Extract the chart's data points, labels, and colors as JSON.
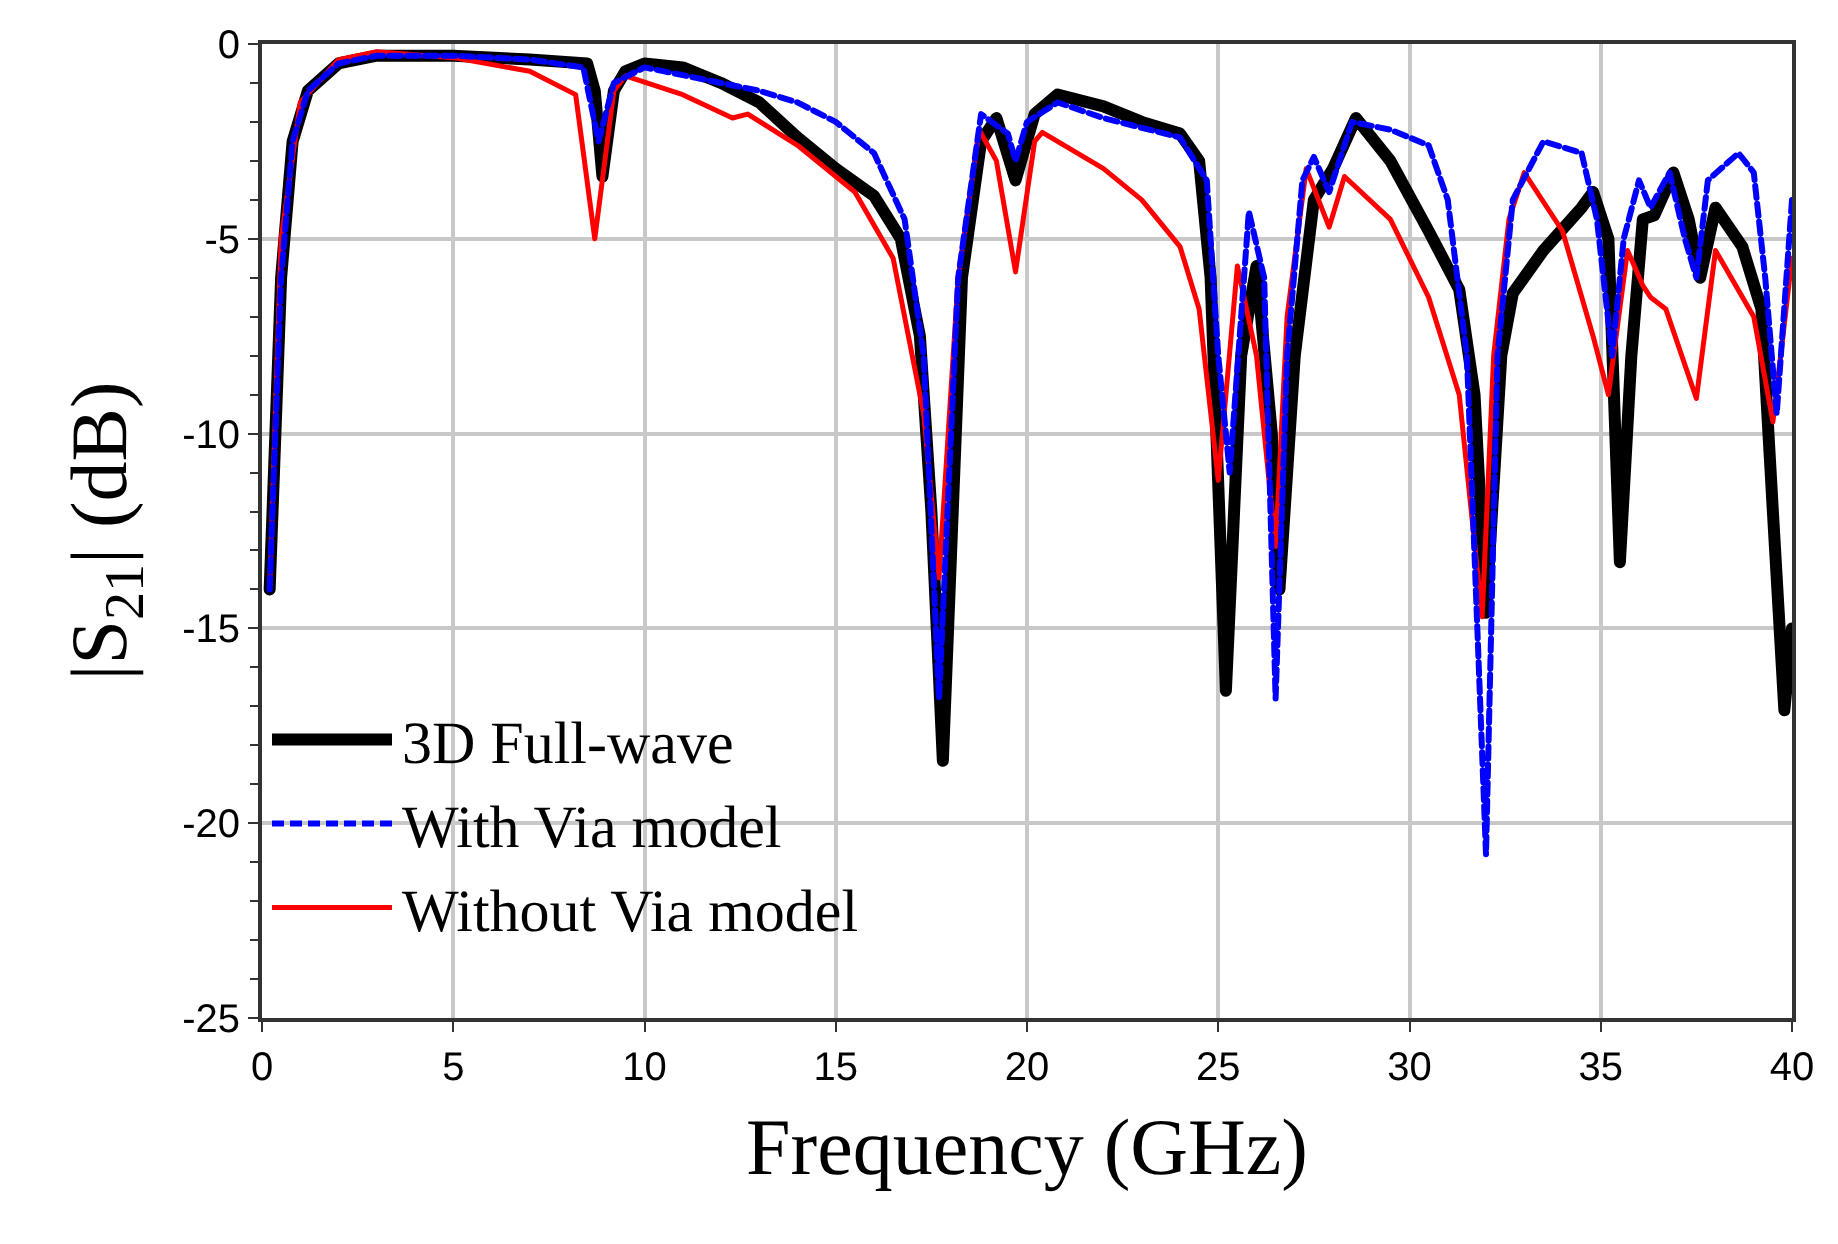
{
  "chart_data": {
    "type": "line",
    "xlabel": "Frequency (GHz)",
    "ylabel": "|S$_{21}$| (dB)",
    "xlim": [
      0,
      40
    ],
    "ylim": [
      -25,
      0
    ],
    "xticks": [
      0,
      5,
      10,
      15,
      20,
      25,
      30,
      35,
      40
    ],
    "yticks": [
      -25,
      -20,
      -15,
      -10,
      -5,
      0
    ],
    "grid": true,
    "legend": "bottom left",
    "marker": "none",
    "series": [
      {
        "name": "3D Full-wave",
        "color": "#000000",
        "line_style": "solid",
        "x": [
          0.2,
          0.5,
          0.8,
          1.2,
          2,
          3,
          5,
          7,
          8.5,
          8.7,
          8.9,
          9.2,
          9.5,
          10,
          11,
          12,
          13,
          14,
          15,
          16,
          16.7,
          17.2,
          17.5,
          17.8,
          18.3,
          18.8,
          19.2,
          19.7,
          20.2,
          20.8,
          22,
          23,
          24,
          24.5,
          24.8,
          25.2,
          25.6,
          26.0,
          26.4,
          26.6,
          27,
          27.5,
          28,
          28.6,
          29.5,
          30.5,
          31.3,
          31.7,
          32.0,
          32.4,
          32.7,
          33.5,
          34.5,
          34.8,
          35.2,
          35.5,
          35.8,
          36.1,
          36.4,
          36.9,
          37.3,
          37.6,
          38.0,
          38.7,
          39.2,
          39.5,
          39.8,
          40
        ],
        "values": [
          -14,
          -6,
          -2.5,
          -1.2,
          -0.5,
          -0.3,
          -0.3,
          -0.4,
          -0.5,
          -1.2,
          -3.4,
          -1.2,
          -0.7,
          -0.5,
          -0.6,
          -1.0,
          -1.5,
          -2.4,
          -3.2,
          -3.9,
          -5,
          -7.5,
          -12,
          -18.4,
          -6,
          -2.5,
          -1.9,
          -3.5,
          -1.8,
          -1.3,
          -1.6,
          -2.0,
          -2.3,
          -3.0,
          -6,
          -16.6,
          -8,
          -5.7,
          -10,
          -14,
          -8,
          -4,
          -3.2,
          -1.9,
          -3,
          -4.8,
          -6.3,
          -9,
          -14.6,
          -8,
          -6.4,
          -5.3,
          -4.2,
          -3.8,
          -5,
          -13.3,
          -8,
          -4.5,
          -4.4,
          -3.3,
          -4.5,
          -6.0,
          -4.2,
          -5.2,
          -6.8,
          -12,
          -17.1,
          -15
        ]
      },
      {
        "name": "With Via model",
        "color": "#0000ff",
        "line_style": "dashed",
        "x": [
          0.2,
          0.5,
          0.8,
          1.2,
          2,
          3,
          5,
          7,
          8.4,
          8.8,
          9.2,
          10,
          11,
          12,
          13,
          14,
          15,
          16,
          16.8,
          17.3,
          17.7,
          18.2,
          18.8,
          19.5,
          19.7,
          20.0,
          20.8,
          22,
          24,
          24.7,
          25.0,
          25.3,
          25.8,
          26.2,
          26.5,
          26.8,
          27.2,
          27.5,
          27.9,
          28.5,
          29.5,
          30.5,
          31.0,
          31.5,
          32.0,
          32.3,
          32.7,
          33.5,
          34.5,
          34.9,
          35.3,
          35.6,
          36.0,
          36.3,
          36.8,
          37.2,
          37.5,
          37.8,
          38.6,
          39.0,
          39.3,
          39.6,
          40
        ],
        "values": [
          -14,
          -6,
          -2.5,
          -1.2,
          -0.5,
          -0.3,
          -0.3,
          -0.4,
          -0.6,
          -2.5,
          -1.0,
          -0.6,
          -0.8,
          -1.0,
          -1.2,
          -1.5,
          -2.0,
          -2.8,
          -4.5,
          -8,
          -16.8,
          -6,
          -1.8,
          -2.3,
          -3.0,
          -2.0,
          -1.5,
          -1.9,
          -2.4,
          -3.5,
          -8,
          -11,
          -4.3,
          -6,
          -16.8,
          -8,
          -3.5,
          -2.9,
          -3.8,
          -2.0,
          -2.2,
          -2.6,
          -4,
          -8,
          -20.8,
          -8,
          -4,
          -2.5,
          -2.8,
          -4.5,
          -8,
          -5,
          -3.5,
          -4.2,
          -3.3,
          -5,
          -6.0,
          -3.5,
          -2.8,
          -3.3,
          -6,
          -9.5,
          -4.0
        ]
      },
      {
        "name": "Without Via model",
        "color": "#ff0000",
        "line_style": "solid",
        "x": [
          0.2,
          0.5,
          1,
          2,
          3,
          5,
          7,
          8.2,
          8.7,
          9.2,
          9.5,
          11,
          12.3,
          12.7,
          14,
          15.5,
          16.5,
          17.3,
          17.7,
          18.2,
          18.75,
          19.2,
          19.7,
          20.2,
          20.4,
          22,
          23,
          24,
          24.5,
          25.0,
          25.5,
          26.0,
          26.5,
          26.8,
          27.3,
          27.9,
          28.3,
          29.5,
          30.5,
          31.3,
          31.9,
          32.2,
          32.6,
          33.0,
          34,
          34.8,
          35.2,
          35.7,
          36.1,
          36.3,
          36.7,
          37.5,
          38.0,
          39,
          39.5,
          40
        ],
        "values": [
          -14,
          -5,
          -1.5,
          -0.4,
          -0.2,
          -0.35,
          -0.7,
          -1.3,
          -5.0,
          -1.2,
          -0.82,
          -1.3,
          -1.9,
          -1.8,
          -2.6,
          -3.8,
          -5.5,
          -9.5,
          -13.7,
          -6,
          -2.2,
          -3,
          -5.85,
          -2.5,
          -2.27,
          -3.2,
          -4,
          -5.2,
          -6.8,
          -11.2,
          -5.7,
          -8,
          -12.9,
          -7,
          -3.2,
          -4.7,
          -3.4,
          -4.5,
          -6.5,
          -9,
          -14.7,
          -8,
          -4.5,
          -3.3,
          -4.8,
          -7.5,
          -9.0,
          -5.3,
          -6.2,
          -6.5,
          -6.8,
          -9.1,
          -5.3,
          -7.0,
          -9.7,
          -5.5
        ]
      }
    ]
  }
}
